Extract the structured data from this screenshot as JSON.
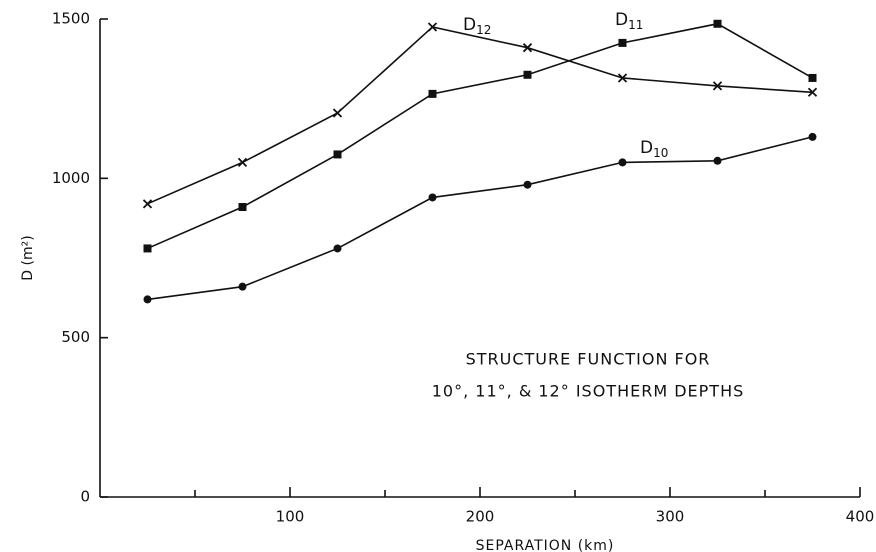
{
  "chart_data": {
    "type": "line",
    "x_label": "SEPARATION (km)",
    "y_label": "D (m²)",
    "annotation": [
      "STRUCTURE FUNCTION FOR",
      "10°, 11°, & 12° ISOTHERM DEPTHS"
    ],
    "x": [
      25,
      75,
      125,
      175,
      225,
      275,
      325,
      375
    ],
    "series": [
      {
        "name": "D12",
        "color": "#111111",
        "marker": "x",
        "values": [
          920,
          1050,
          1205,
          1475,
          1410,
          1315,
          1290,
          1270
        ]
      },
      {
        "name": "D11",
        "color": "#111111",
        "marker": "square",
        "values": [
          780,
          910,
          1075,
          1265,
          1325,
          1425,
          1485,
          1315
        ]
      },
      {
        "name": "D10",
        "color": "#111111",
        "marker": "circle",
        "values": [
          620,
          660,
          780,
          940,
          980,
          1050,
          1055,
          1130
        ]
      }
    ],
    "xlim": [
      0,
      400
    ],
    "xticks": [
      100,
      200,
      300,
      400
    ],
    "xminor_ticks": [
      50,
      150,
      250,
      350
    ],
    "ylim": [
      0,
      1500
    ],
    "yticks": [
      0,
      500,
      1000,
      1500
    ],
    "grid": false
  }
}
